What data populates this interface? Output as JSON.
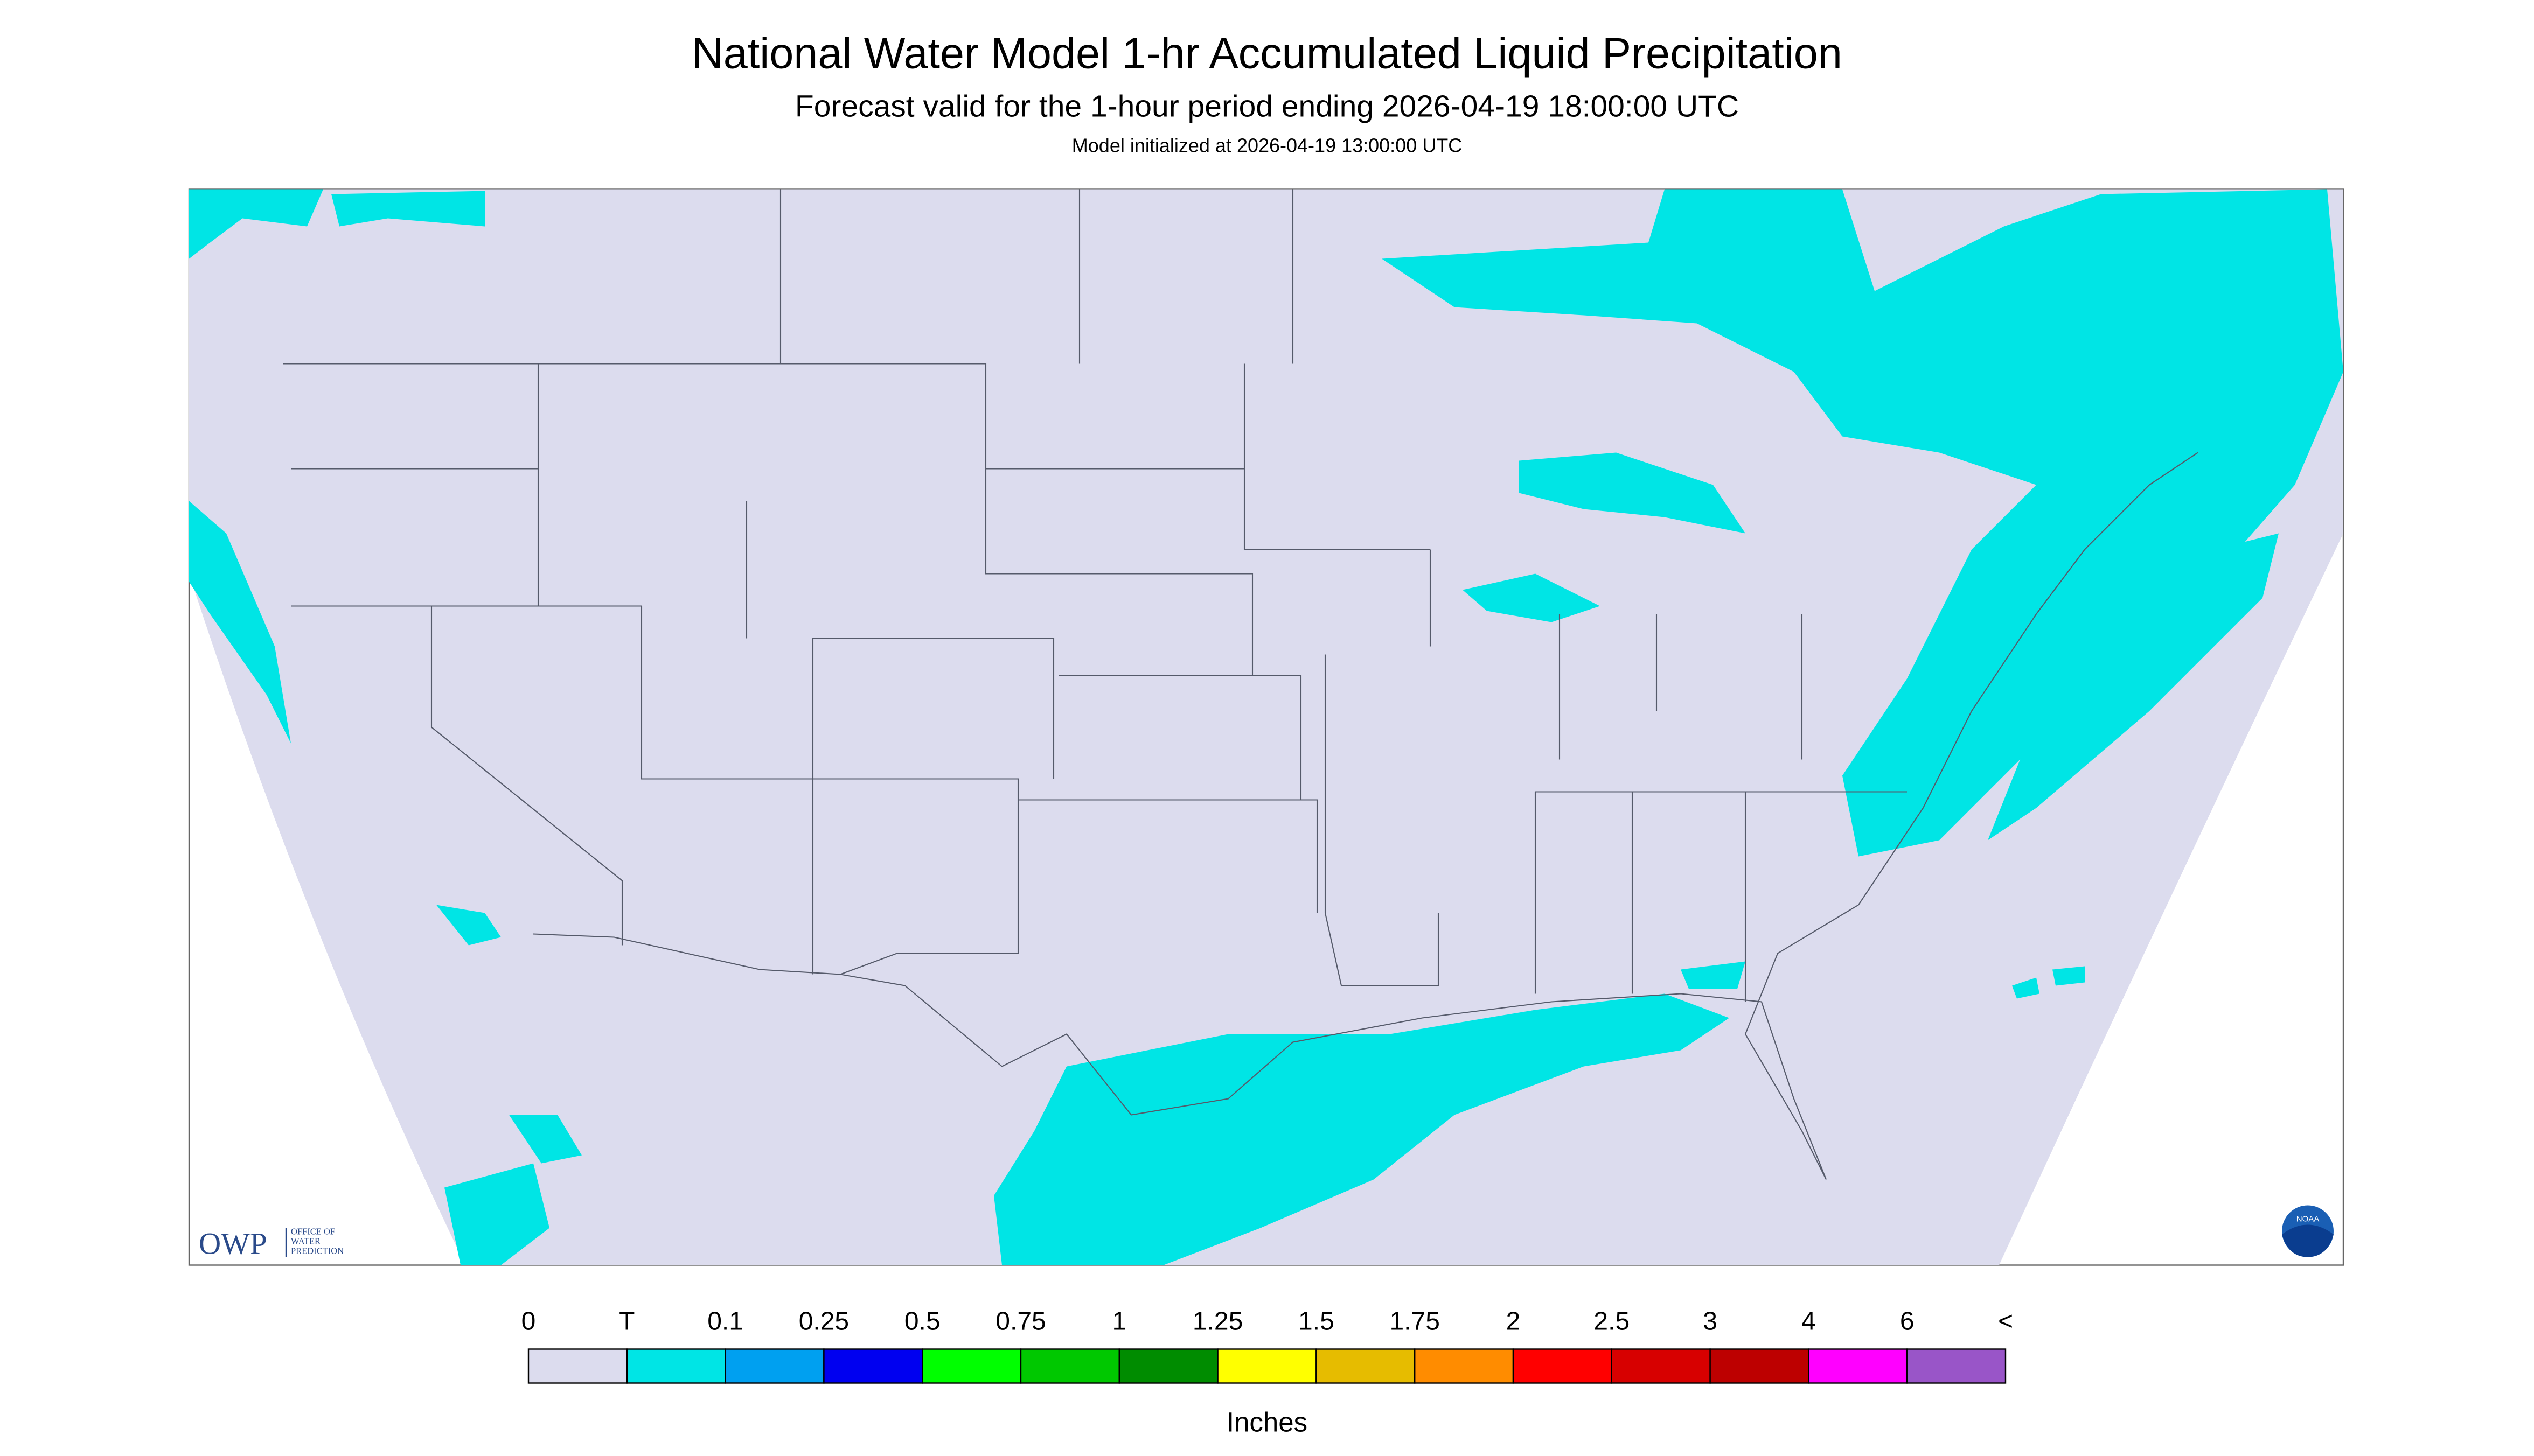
{
  "header": {
    "title": "National Water Model 1-hr Accumulated Liquid Precipitation",
    "subtitle": "Forecast valid for the 1-hour period ending 2026-04-19 18:00:00 UTC",
    "initialized": "Model initialized at 2026-04-19 13:00:00 UTC"
  },
  "legend": {
    "labels": [
      "0",
      "T",
      "0.1",
      "0.25",
      "0.5",
      "0.75",
      "1",
      "1.25",
      "1.5",
      "1.75",
      "2",
      "2.5",
      "3",
      "4",
      "6",
      "<"
    ],
    "colors": [
      "#dcdcee",
      "#00e5e5",
      "#00a0f0",
      "#0000f0",
      "#00ff00",
      "#00c800",
      "#008c00",
      "#ffff00",
      "#e6bc00",
      "#ff8c00",
      "#ff0000",
      "#d70000",
      "#bd0000",
      "#ff00ff",
      "#9955c8"
    ],
    "unit": "Inches"
  },
  "logo": {
    "abbr": "OWP",
    "name": [
      "OFFICE OF",
      "WATER",
      "PREDICTION"
    ]
  },
  "badge": "NOAA"
}
